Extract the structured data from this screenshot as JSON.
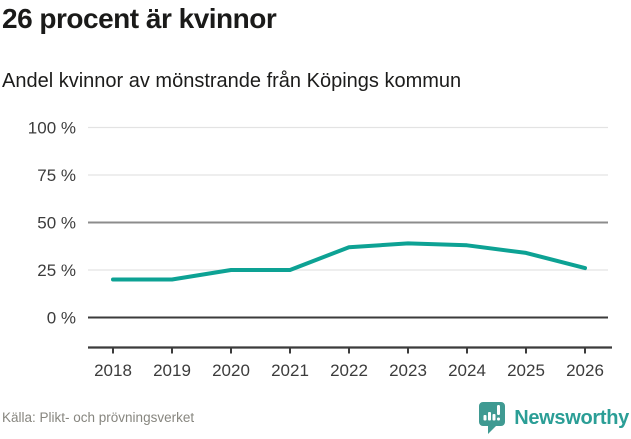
{
  "header": {
    "title": "26 procent är kvinnor",
    "subtitle": "Andel kvinnor av mönstrande från Köpings kommun"
  },
  "chart_data": {
    "type": "line",
    "title": "26 procent är kvinnor",
    "subtitle": "Andel kvinnor av mönstrande från Köpings kommun",
    "x": [
      2018,
      2019,
      2020,
      2021,
      2022,
      2023,
      2024,
      2025,
      2026
    ],
    "xtick_labels": [
      "2018",
      "2019",
      "2020",
      "2021",
      "2022",
      "2023",
      "2024",
      "2025",
      "2026"
    ],
    "series": [
      {
        "name": "Andel kvinnor av mönstrande",
        "values": [
          20,
          20,
          25,
          25,
          37,
          39,
          38,
          34,
          26
        ]
      }
    ],
    "ylim": [
      0,
      100
    ],
    "yticks": [
      0,
      25,
      50,
      75,
      100
    ],
    "ytick_labels": [
      "0 %",
      "25 %",
      "50 %",
      "75 %",
      "100 %"
    ],
    "grid": true,
    "emphasized_gridline_value": 50,
    "baseline_value": 0,
    "legend_position": "none"
  },
  "footer": {
    "source": "Källa: Plikt- och prövningsverket",
    "brand": "Newsworthy"
  },
  "icons": {
    "logo_badge": "newsworthy-bar-chart-bubble-icon"
  },
  "colors": {
    "line": "#0da294",
    "grid_light": "#e3e3e3",
    "grid_mid": "#8c8c8c",
    "axis_dark": "#3b3b3b",
    "axis_text": "#3c3c3c",
    "title_text": "#1a1a19",
    "source_text": "#87867f",
    "brand_teal": "#2b9e96",
    "badge_teal": "#3f9a92"
  }
}
